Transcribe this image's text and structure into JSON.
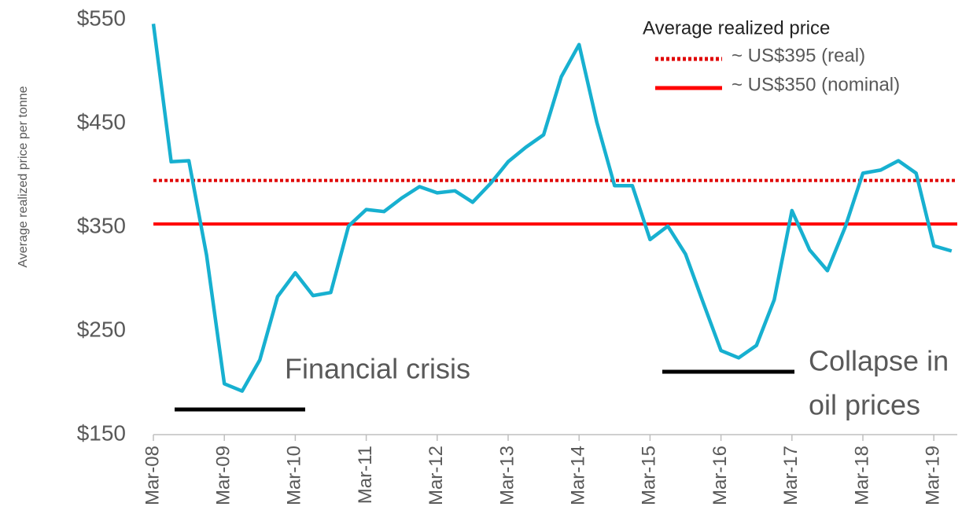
{
  "chart_data": {
    "type": "line",
    "y_label": "Average realized price per tonne",
    "categories": [
      "Mar-08",
      null,
      null,
      null,
      "Mar-09",
      null,
      null,
      null,
      "Mar-10",
      null,
      null,
      null,
      "Mar-11",
      null,
      null,
      null,
      "Mar-12",
      null,
      null,
      null,
      "Mar-13",
      null,
      null,
      null,
      "Mar-14",
      null,
      null,
      null,
      "Mar-15",
      null,
      null,
      null,
      "Mar-16",
      null,
      null,
      null,
      "Mar-17",
      null,
      null,
      null,
      "Mar-18",
      null,
      null,
      null,
      "Mar-19",
      null
    ],
    "values": [
      546,
      413,
      414,
      323,
      199,
      192,
      222,
      283,
      306,
      284,
      287,
      351,
      367,
      365,
      378,
      389,
      383,
      385,
      374,
      392,
      413,
      427,
      439,
      495,
      526,
      451,
      390,
      390,
      338,
      351,
      324,
      277,
      231,
      224,
      236,
      280,
      366,
      328,
      308,
      350,
      402,
      405,
      414,
      402,
      332,
      327
    ],
    "color": "#17b0d0",
    "ylim": [
      150,
      550
    ],
    "yticks": [
      {
        "value": 150,
        "label": "$150"
      },
      {
        "value": 250,
        "label": "$250"
      },
      {
        "value": 350,
        "label": "$350"
      },
      {
        "value": 450,
        "label": "$450"
      },
      {
        "value": 550,
        "label": "$550"
      }
    ],
    "legend_title": "Average realized price",
    "reference_lines": [
      {
        "name": "~ US$395 (real)",
        "value": 395,
        "color": "#e00000",
        "style": "dotted"
      },
      {
        "name": "~ US$350 (nominal)",
        "value": 353,
        "color": "#ff0000",
        "style": "solid"
      }
    ],
    "annotations": [
      {
        "lines": [
          "Financial crisis"
        ]
      },
      {
        "lines": [
          "Collapse in",
          "oil prices"
        ]
      }
    ]
  }
}
